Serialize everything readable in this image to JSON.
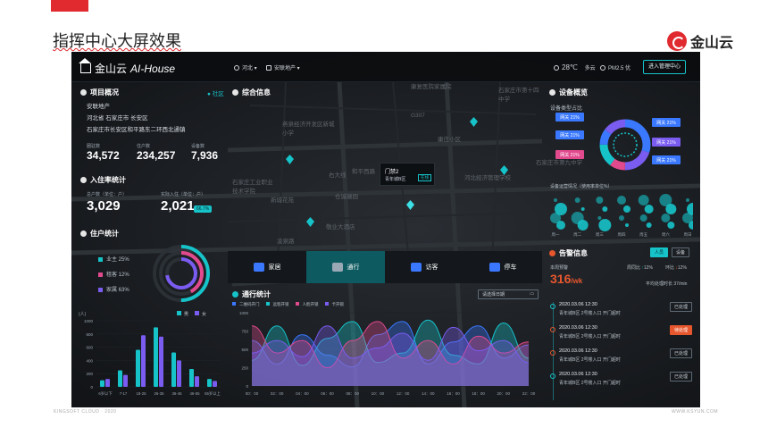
{
  "slide": {
    "title": "指挥中心大屏效果",
    "brand_name": "金山云",
    "footer_left": "KINGSOFT CLOUD · 2020",
    "footer_right": "WWW.KSYUN.COM"
  },
  "header": {
    "logo_brand": "金山云",
    "logo_product": "AI-House",
    "region_select": "河北",
    "project_select": "安联地产",
    "weather_temp": "28℃",
    "weather_desc": "多云",
    "pm25": "PM2.5 优",
    "enter_button": "进入管理中心"
  },
  "project_overview": {
    "title": "项目概况",
    "community_tag": "● 社区",
    "company": "安联地产",
    "location": "河北省 石家庄市 长安区",
    "address": "石家庄市长安区和平路东二环西北通镇",
    "stats": [
      {
        "label": "圈驻数",
        "value": "34,572"
      },
      {
        "label": "住户数",
        "value": "234,257"
      },
      {
        "label": "设备数",
        "value": "7,936"
      }
    ]
  },
  "occupancy": {
    "title": "入住率统计",
    "total_label": "总户数（单位：户）",
    "total_value": "3,029",
    "actual_label": "实际入住（单位：户）",
    "actual_value": "2,021",
    "rate": "66.7%"
  },
  "residents": {
    "title": "住户统计",
    "legend": [
      {
        "label": "业主 25%",
        "color": "#16c3c9",
        "share": 25
      },
      {
        "label": "租客 12%",
        "color": "#e24a8e",
        "share": 12
      },
      {
        "label": "家属 63%",
        "color": "#7a5cf0",
        "share": 63
      }
    ]
  },
  "map": {
    "title": "综合信息",
    "labels": [
      {
        "text": "康复医院家属院"
      },
      {
        "text": "石家庄市第十四中学"
      },
      {
        "text": "燕泉经济开发区新城小学"
      },
      {
        "text": "康庄小区"
      },
      {
        "text": "和平西路"
      },
      {
        "text": "新城花苑"
      },
      {
        "text": "敬业大酒店"
      },
      {
        "text": "凌泉路"
      },
      {
        "text": "石家庄工业职业技术学院"
      },
      {
        "text": "仓诚瑞园"
      },
      {
        "text": "石家庄市第九中学"
      },
      {
        "text": "河北经济管理学校"
      },
      {
        "text": "G307"
      },
      {
        "text": "右大线"
      }
    ],
    "popup": {
      "title": "门禁2",
      "subtitle": "青年城B区",
      "badge": "在线"
    }
  },
  "nav_tabs": [
    {
      "label": "家居",
      "active": false
    },
    {
      "label": "通行",
      "active": true
    },
    {
      "label": "访客",
      "active": false
    },
    {
      "label": "停车",
      "active": false
    }
  ],
  "device_overview": {
    "title": "设备概览",
    "type_title": "设备类型占比",
    "type_labels": [
      "网关 21%",
      "网关 21%",
      "网关 21%",
      "网关 21%",
      "网关 21%",
      "网关 21%"
    ],
    "ops_title": "设备运营情况（使用率单位%）",
    "weekdays": [
      "周一",
      "周二",
      "周三",
      "周四",
      "周五",
      "周六",
      "周日"
    ]
  },
  "alerts": {
    "title": "告警信息",
    "tabs": [
      "人员",
      "设备"
    ],
    "weekly_label": "本周预警",
    "weekly_value": "316",
    "weekly_unit": "/wk",
    "wow_label": "周同比",
    "wow_value": "12%",
    "mom_label": "环比",
    "mom_value": "12%",
    "avg_label": "平均处理时长",
    "avg_value": "37/min",
    "items": [
      {
        "time": "2020.03.06  12:30",
        "desc": "青年城B区 2号楼入口 开门超时",
        "status": "已处理",
        "warn": false
      },
      {
        "time": "2020.03.06  12:30",
        "desc": "青年城B区 2号楼入口 开门超时",
        "status": "待处理",
        "warn": true
      },
      {
        "time": "2020.03.06  12:30",
        "desc": "青年城B区 2号楼入口 开门超时",
        "status": "已处理",
        "warn": false
      },
      {
        "time": "2020.03.06  12:30",
        "desc": "青年城B区 2号楼入口 开门超时",
        "status": "已处理",
        "warn": false
      }
    ]
  },
  "traffic": {
    "title": "通行统计",
    "date_placeholder": "请选择日期",
    "legend": [
      {
        "label": "二维码开门",
        "color": "#3a78ff"
      },
      {
        "label": "远程开锁",
        "color": "#16c3c9"
      },
      {
        "label": "人脸开锁",
        "color": "#e24a8e"
      },
      {
        "label": "卡开锁",
        "color": "#7a5cf0"
      }
    ]
  },
  "chart_data": [
    {
      "type": "bar",
      "title": "",
      "ylabel": "(人)",
      "ylim": [
        0,
        1000
      ],
      "categories": [
        "6岁以下",
        "7-17",
        "18-25",
        "26-35",
        "36-45",
        "46-55",
        "55岁以上"
      ],
      "series": [
        {
          "name": "男",
          "color": "#16c3c9",
          "values": [
            100,
            250,
            560,
            900,
            520,
            270,
            120
          ]
        },
        {
          "name": "女",
          "color": "#7a5cf0",
          "values": [
            120,
            180,
            780,
            760,
            400,
            160,
            90
          ]
        }
      ],
      "yticks": [
        0,
        200,
        400,
        600,
        800,
        1000
      ]
    },
    {
      "type": "area",
      "title": "",
      "ylim": [
        0,
        1000
      ],
      "yticks": [
        0,
        250,
        500,
        750,
        1000
      ],
      "x": [
        "00：00",
        "02：00",
        "04：00",
        "06：00",
        "08：00",
        "10：00",
        "12：00",
        "14：00",
        "16：00",
        "18：00",
        "20：00",
        "22：00"
      ],
      "series": [
        {
          "name": "二维码开门",
          "color": "#3a78ff",
          "values": [
            620,
            300,
            700,
            420,
            260,
            700,
            880,
            300,
            600,
            820,
            380,
            560
          ]
        },
        {
          "name": "远程开锁",
          "color": "#16c3c9",
          "values": [
            350,
            820,
            280,
            650,
            880,
            320,
            450,
            900,
            420,
            300,
            860,
            380
          ]
        },
        {
          "name": "人脸开锁",
          "color": "#e24a8e",
          "values": [
            820,
            450,
            620,
            250,
            620,
            880,
            380,
            620,
            300,
            680,
            450,
            600
          ]
        },
        {
          "name": "卡开锁",
          "color": "#7a5cf0",
          "values": [
            450,
            620,
            400,
            820,
            380,
            520,
            720,
            350,
            800,
            480,
            620,
            320
          ]
        }
      ]
    }
  ]
}
